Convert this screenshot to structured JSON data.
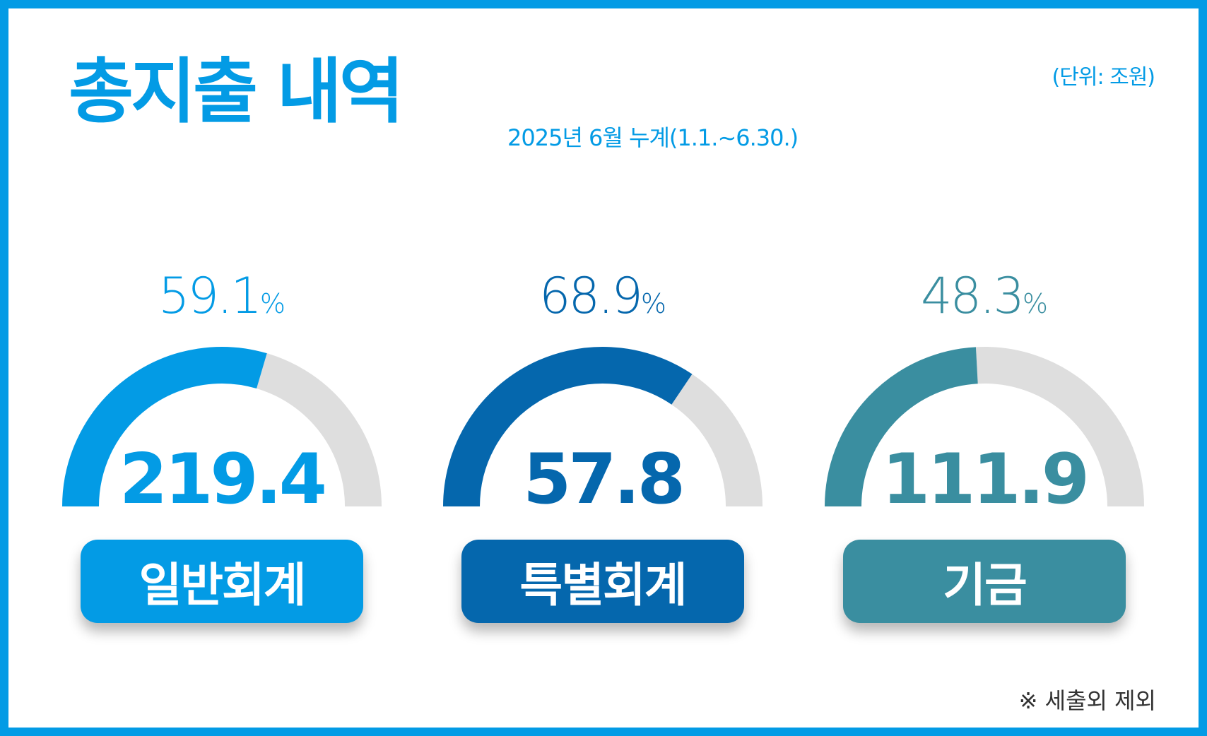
{
  "header": {
    "title": "총지출 내역",
    "subtitle": "2025년 6월 누계(1.1.~6.30.)",
    "unit": "(단위: 조원)"
  },
  "footnote": "※ 세출외 제외",
  "chart_data": {
    "type": "gauge",
    "unit": "조원",
    "items": [
      {
        "label": "일반회계",
        "value": 219.4,
        "value_text": "219.4",
        "percent": 59.1,
        "percent_text": "59.1",
        "color": "#039be5"
      },
      {
        "label": "특별회계",
        "value": 57.8,
        "value_text": "57.8",
        "percent": 68.9,
        "percent_text": "68.9",
        "color": "#0567ad"
      },
      {
        "label": "기금",
        "value": 111.9,
        "value_text": "111.9",
        "percent": 48.3,
        "percent_text": "48.3",
        "color": "#3a8ea0"
      }
    ],
    "percent_sign": "%",
    "track_color": "#dedede"
  }
}
